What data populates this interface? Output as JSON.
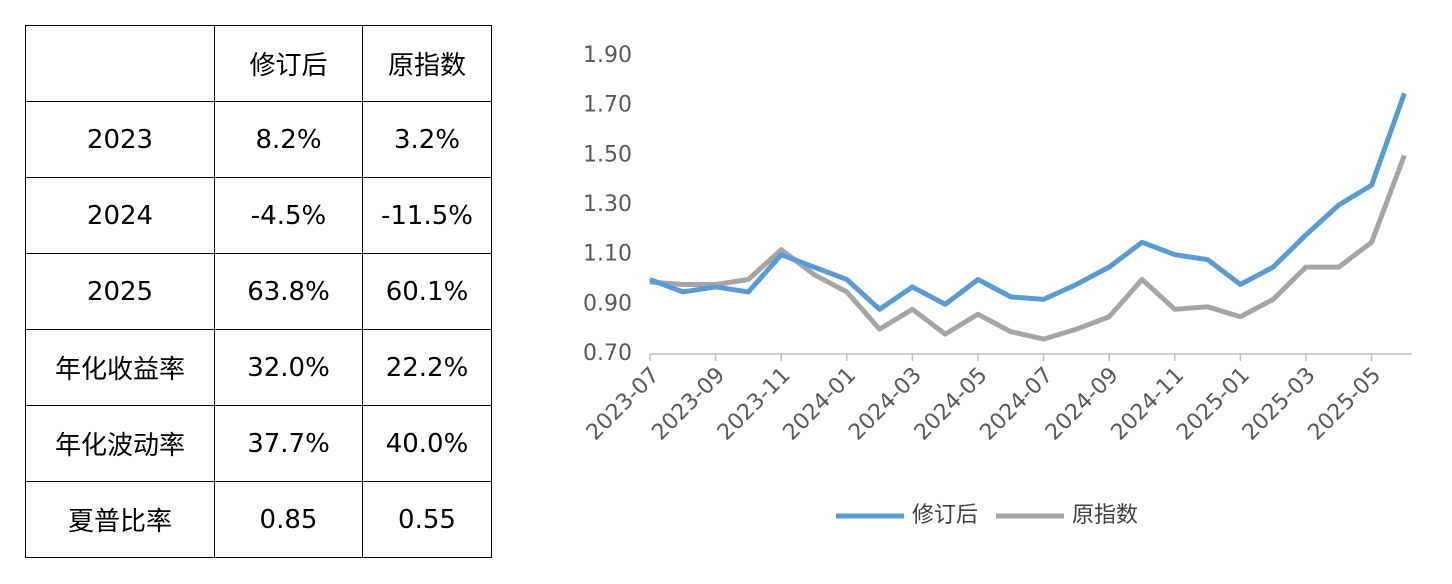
{
  "table": {
    "columns": [
      "修订后",
      "原指数"
    ],
    "rows": [
      [
        "2023",
        "8.2%",
        "3.2%"
      ],
      [
        "2024",
        "-4.5%",
        "-11.5%"
      ],
      [
        "2025",
        "63.8%",
        "60.1%"
      ],
      [
        "年化收益率",
        "32.0%",
        "22.2%"
      ],
      [
        "年化波动率",
        "37.7%",
        "40.0%"
      ],
      [
        "夏普比率",
        "0.85",
        "0.55"
      ]
    ]
  },
  "chart_data": {
    "type": "line",
    "categories": [
      "2023-07",
      null,
      "2023-09",
      null,
      "2023-11",
      null,
      "2024-01",
      null,
      "2024-03",
      null,
      "2024-05",
      null,
      "2024-07",
      null,
      "2024-09",
      null,
      "2024-11",
      null,
      "2025-01",
      null,
      "2025-03",
      null,
      "2025-05",
      null
    ],
    "series": [
      {
        "name": "修订后",
        "color": "#5b9bd5",
        "values": [
          1.0,
          0.95,
          0.97,
          0.95,
          1.1,
          1.05,
          1.0,
          0.88,
          0.97,
          0.9,
          1.0,
          0.93,
          0.92,
          0.98,
          1.05,
          1.15,
          1.1,
          1.08,
          0.98,
          1.05,
          1.18,
          1.3,
          1.38,
          1.75
        ]
      },
      {
        "name": "原指数",
        "color": "#a5a5a5",
        "values": [
          0.99,
          0.98,
          0.98,
          1.0,
          1.12,
          1.02,
          0.95,
          0.8,
          0.88,
          0.78,
          0.86,
          0.79,
          0.76,
          0.8,
          0.85,
          1.0,
          0.88,
          0.89,
          0.85,
          0.92,
          1.05,
          1.05,
          1.15,
          1.5
        ]
      }
    ],
    "ylim": [
      0.7,
      1.9
    ],
    "yticks": [
      {
        "value": 0.7,
        "label": "0.70"
      },
      {
        "value": 0.9,
        "label": "0.90"
      },
      {
        "value": 1.1,
        "label": "1.10"
      },
      {
        "value": 1.3,
        "label": "1.30"
      },
      {
        "value": 1.5,
        "label": "1.50"
      },
      {
        "value": 1.7,
        "label": "1.70"
      },
      {
        "value": 1.9,
        "label": "1.90"
      }
    ],
    "grid": false,
    "legend": "bottom"
  }
}
